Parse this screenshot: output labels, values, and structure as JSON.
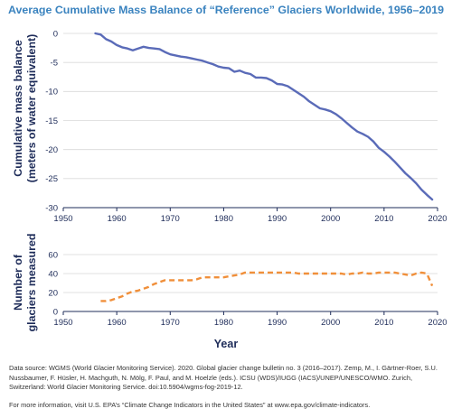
{
  "colors": {
    "title": "#3a83bf",
    "mass_balance_line": "#5a6bb8",
    "glaciers_line": "#f08f3a",
    "grid": "#d9d9d9",
    "axis": "#1f2d5a"
  },
  "chart_data": [
    {
      "type": "line",
      "title": "Average Cumulative Mass Balance of “Reference” Glaciers Worldwide, 1956–2019",
      "ylabel": "Cumulative mass balance (meters of water equivalent)",
      "ylabel_lines": [
        "Cumulative mass balance",
        "(meters of water equivalent)"
      ],
      "xlabel": "",
      "xlim": [
        1950,
        2020
      ],
      "ylim": [
        -30,
        0
      ],
      "xticks": [
        "1950",
        "1960",
        "1970",
        "1980",
        "1990",
        "2000",
        "2010",
        "2020"
      ],
      "yticks": [
        "0",
        "-5",
        "-10",
        "-15",
        "-20",
        "-25",
        "-30"
      ],
      "grid": true,
      "series": [
        {
          "line_style": "solid",
          "x": [
            1956,
            1957,
            1958,
            1959,
            1960,
            1961,
            1962,
            1963,
            1964,
            1965,
            1966,
            1967,
            1968,
            1969,
            1970,
            1971,
            1972,
            1973,
            1974,
            1975,
            1976,
            1977,
            1978,
            1979,
            1980,
            1981,
            1982,
            1983,
            1984,
            1985,
            1986,
            1987,
            1988,
            1989,
            1990,
            1991,
            1992,
            1993,
            1994,
            1995,
            1996,
            1997,
            1998,
            1999,
            2000,
            2001,
            2002,
            2003,
            2004,
            2005,
            2006,
            2007,
            2008,
            2009,
            2010,
            2011,
            2012,
            2013,
            2014,
            2015,
            2016,
            2017,
            2018,
            2019
          ],
          "values": [
            0,
            -0.2,
            -1,
            -1.4,
            -2,
            -2.4,
            -2.6,
            -2.9,
            -2.6,
            -2.3,
            -2.5,
            -2.6,
            -2.7,
            -3.2,
            -3.6,
            -3.8,
            -4,
            -4.1,
            -4.3,
            -4.5,
            -4.7,
            -5,
            -5.3,
            -5.7,
            -5.9,
            -6,
            -6.6,
            -6.4,
            -6.8,
            -7,
            -7.6,
            -7.6,
            -7.7,
            -8.1,
            -8.7,
            -8.8,
            -9.1,
            -9.7,
            -10.3,
            -10.9,
            -11.7,
            -12.3,
            -12.9,
            -13.1,
            -13.4,
            -13.9,
            -14.6,
            -15.4,
            -16.2,
            -16.9,
            -17.3,
            -17.8,
            -18.6,
            -19.7,
            -20.4,
            -21.2,
            -22.1,
            -23.1,
            -24.1,
            -24.9,
            -25.8,
            -26.9,
            -27.8,
            -28.6
          ]
        }
      ]
    },
    {
      "type": "line",
      "ylabel": "Number of glaciers measured",
      "ylabel_lines": [
        "Number of",
        "glaciers measured"
      ],
      "xlabel": "Year",
      "xlim": [
        1950,
        2020
      ],
      "ylim": [
        0,
        60
      ],
      "xticks": [
        "1950",
        "1960",
        "1970",
        "1980",
        "1990",
        "2000",
        "2010",
        "2020"
      ],
      "yticks": [
        "0",
        "20",
        "40",
        "60"
      ],
      "grid": true,
      "series": [
        {
          "line_style": "dashed",
          "x": [
            1957,
            1958,
            1959,
            1960,
            1961,
            1962,
            1963,
            1964,
            1965,
            1966,
            1967,
            1968,
            1969,
            1970,
            1971,
            1972,
            1973,
            1974,
            1975,
            1976,
            1977,
            1978,
            1979,
            1980,
            1981,
            1982,
            1983,
            1984,
            1985,
            1986,
            1987,
            1988,
            1989,
            1990,
            1991,
            1992,
            1993,
            1994,
            1995,
            1996,
            1997,
            1998,
            1999,
            2000,
            2001,
            2002,
            2003,
            2004,
            2005,
            2006,
            2007,
            2008,
            2009,
            2010,
            2011,
            2012,
            2013,
            2014,
            2015,
            2016,
            2017,
            2018,
            2019
          ],
          "values": [
            11,
            11,
            12,
            14,
            16,
            19,
            21,
            22,
            24,
            26,
            29,
            31,
            33,
            33,
            33,
            33,
            33,
            33,
            34,
            36,
            36,
            36,
            36,
            36,
            37,
            38,
            39,
            41,
            41,
            41,
            41,
            41,
            41,
            41,
            41,
            41,
            41,
            40,
            40,
            40,
            40,
            40,
            40,
            40,
            40,
            40,
            39,
            40,
            40,
            41,
            40,
            40,
            41,
            41,
            41,
            41,
            40,
            39,
            38,
            40,
            41,
            40,
            27
          ]
        }
      ]
    }
  ],
  "source_note": "Data source: WGMS (World Glacier Monitoring Service). 2020. Global glacier change bulletin no. 3 (2016–2017). Zemp, M., I. Gärtner-Roer, S.U. Nussbaumer, F. Hüsler, H. Machguth, N. Mölg, F. Paul, and M. Hoelzle (eds.). ICSU (WDS)/IUGG (IACS)/UNEP/UNESCO/WMO. Zurich, Switzerland: World Glacier Monitoring Service. doi:10.5904/wgms-fog-2019-12.",
  "more_info": "For more information, visit U.S. EPA’s “Climate Change Indicators in the United States” at www.epa.gov/climate-indicators."
}
